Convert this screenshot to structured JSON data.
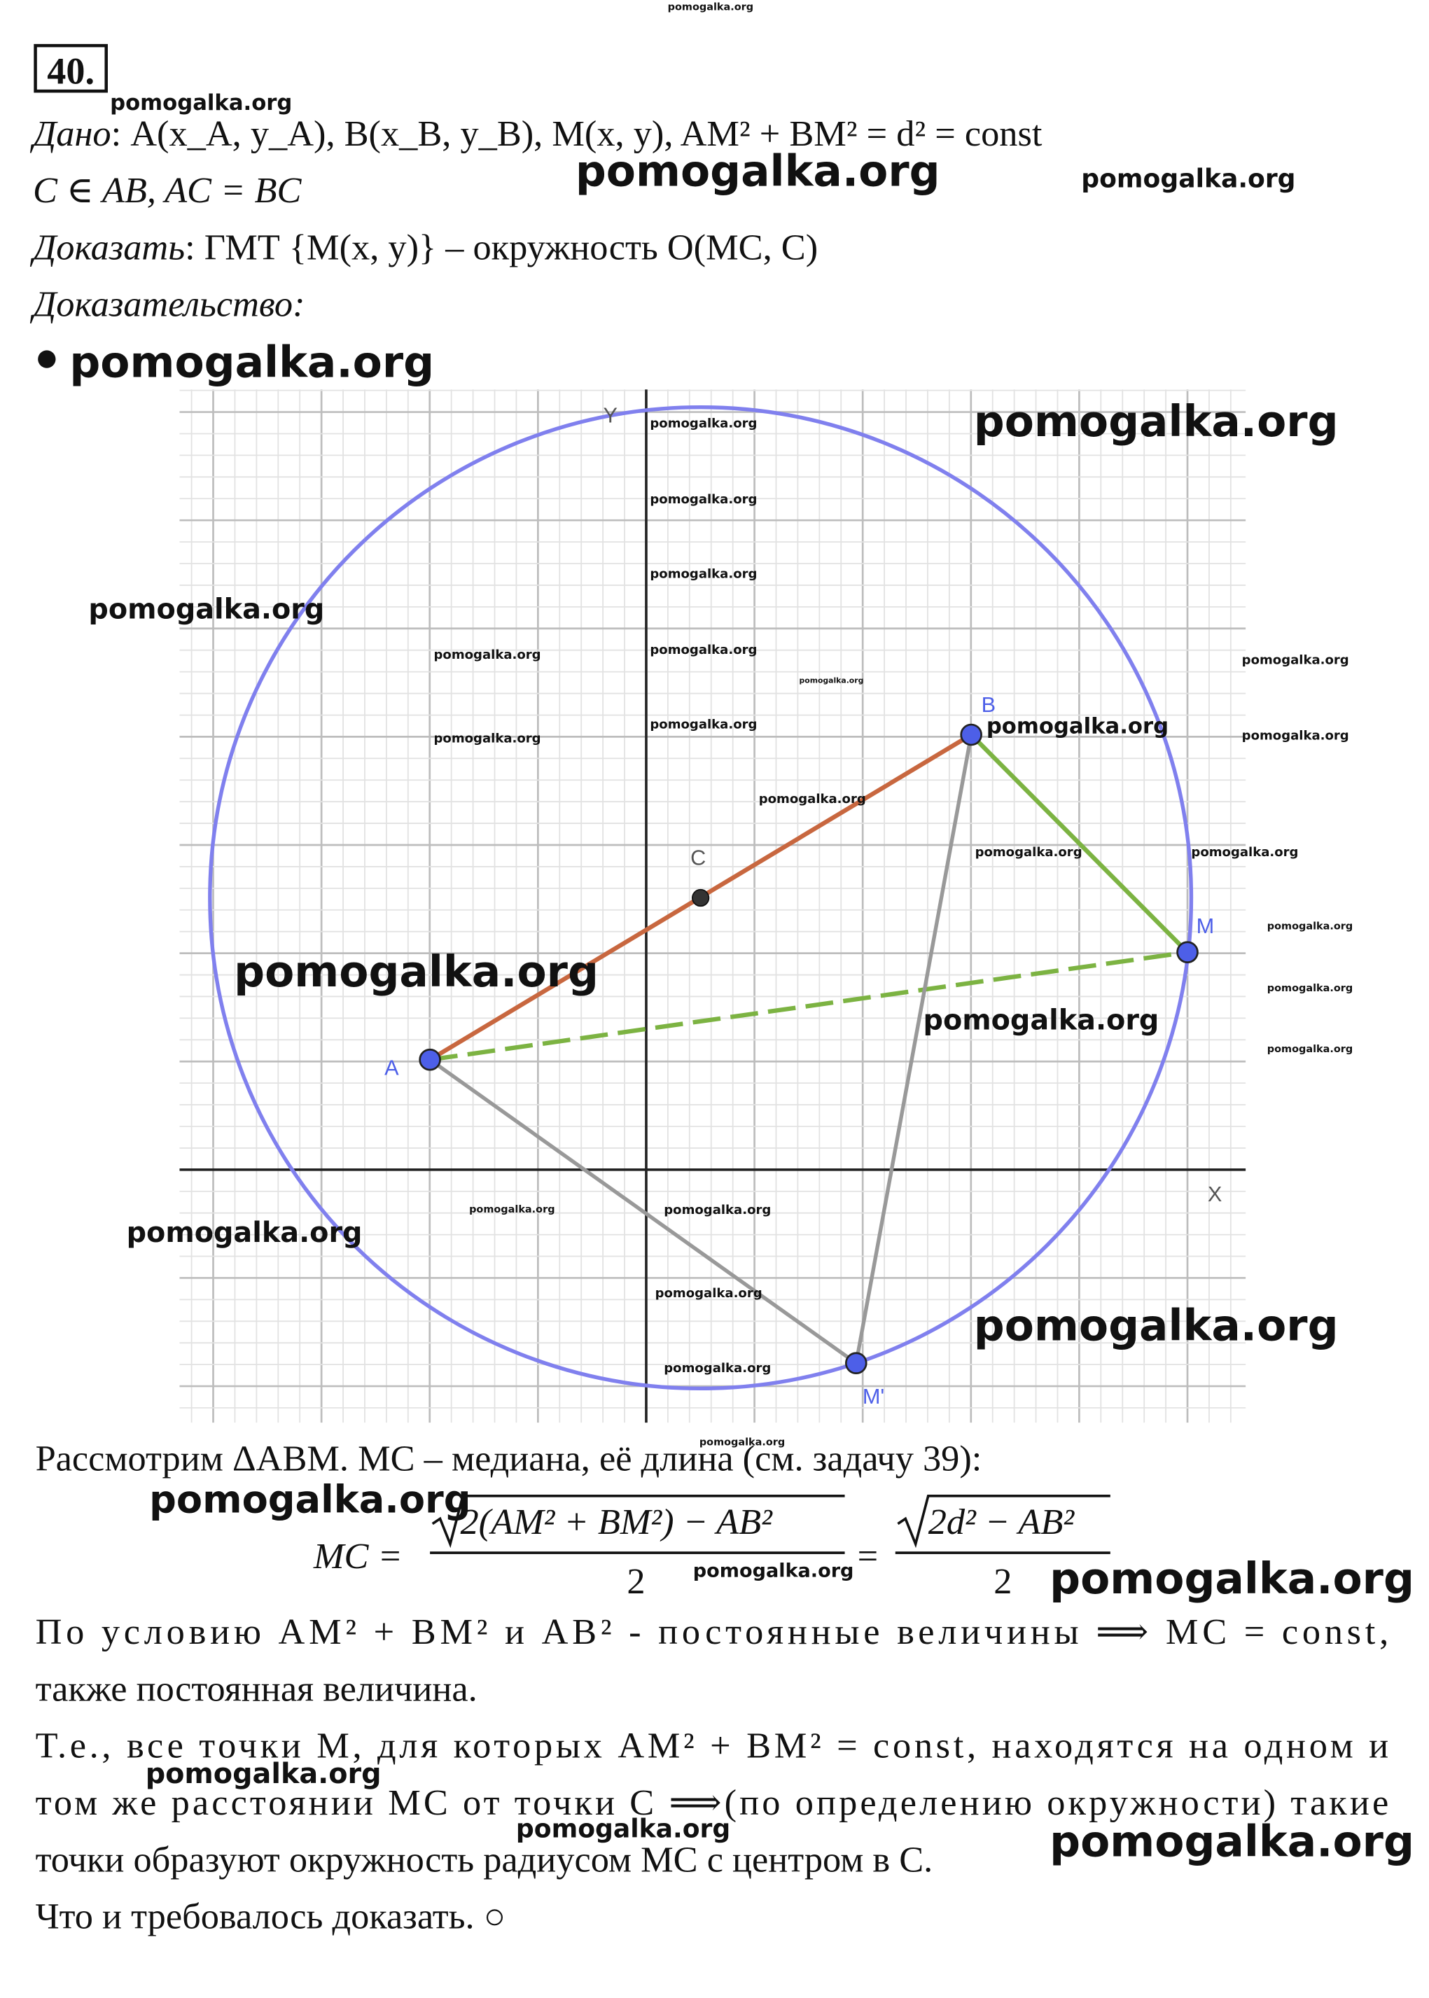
{
  "header": {
    "problem_number": "40."
  },
  "given": {
    "label": "Дано",
    "text": ": A(x_A, y_A), B(x_B, y_B), M(x, y),  AM² + BM² = d² = const",
    "line2": "C ∈ AB, AC = BC"
  },
  "prove": {
    "label": "Доказать",
    "text": ": ГМТ {M(x, y)} – окружность O(MC, C)"
  },
  "proof_label": "Доказательство:",
  "diagram": {
    "axis_y": "Y",
    "axis_x": "X",
    "points": {
      "A": "A",
      "B": "B",
      "C": "C",
      "M": "M",
      "M2": "M'"
    }
  },
  "proof": {
    "line1": "Рассмотрим ΔABM. MC – медиана, её длина (см. задачу 39):",
    "formula": {
      "lhs": "MC =",
      "num1": "2(AM² + BM²) − AB²",
      "den1": "2",
      "eq": "=",
      "num2": "2d² − AB²",
      "den2": "2"
    },
    "lines": [
      "По условию  AM² + BM²  и  AB²  -  постоянные  величины  ⟹ MC = const,",
      "также постоянная величина.",
      "Т.е., все точки M, для которых AM² + BM² = const, находятся на одном и",
      "том же расстоянии MC от точки C ⟹(по определению окружности) такие",
      "точки образуют окружность радиусом MC с центром в C.",
      "Что и требовалось доказать. ○"
    ]
  },
  "watermarks": [
    "pomogalka.org",
    "pomogalka.org",
    "pomogalka.org",
    "pomogalka.org",
    "pomogalka.org",
    "pomogalka.org",
    "pomogalka.org",
    "pomogalka.org",
    "pomogalka.org",
    "pomogalka.org",
    "pomogalka.org",
    "pomogalka.org",
    "pomogalka.org",
    "pomogalka.org",
    "pomogalka.org",
    "pomogalka.org",
    "pomogalka.org",
    "pomogalka.org",
    "pomogalka.org",
    "pomogalka.org",
    "pomogalka.org",
    "pomogalka.org",
    "pomogalka.org",
    "pomogalka.org",
    "pomogalka.org",
    "pomogalka.org",
    "pomogalka.org",
    "pomogalka.org",
    "pomogalka.org",
    "pomogalka.org",
    "pomogalka.org",
    "pomogalka.org",
    "pomogalka.org",
    "pomogalka.org",
    "pomogalka.org",
    "pomogalka.org",
    "pomogalka.org",
    "pomogalka.org",
    "pomogalka.org"
  ]
}
